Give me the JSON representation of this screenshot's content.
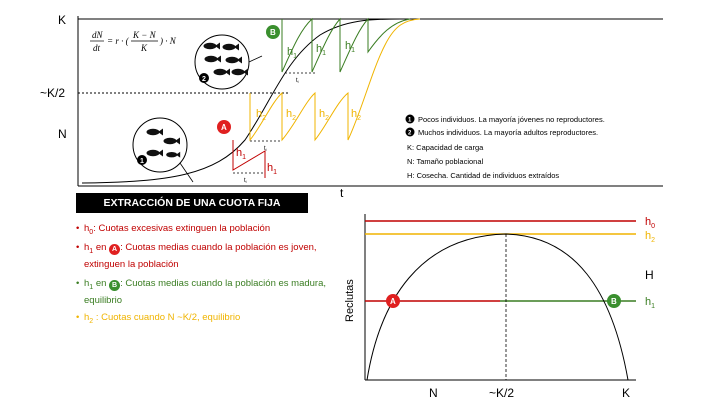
{
  "top_chart": {
    "equation": "dN/dt = r · ((K − N)/K) · N",
    "axis_labels": {
      "k": "K",
      "k_half": "~K/2",
      "n": "N",
      "t": "t"
    },
    "markers": {
      "a": "A",
      "b": "B",
      "one": "1",
      "two": "2"
    },
    "harvest_labels": {
      "h1": "h",
      "h1_sub": "1",
      "h2": "h",
      "h2_sub": "2",
      "ti": "t",
      "ti_sub": "i"
    },
    "legend": {
      "item1": "Pocos individuos. La mayoría jóvenes no reproductores.",
      "item2": "Muchos individuos. La mayoría adultos reproductores.",
      "k": "K:  Capacidad de carga",
      "n": "N:  Tamaño poblacional",
      "h": "H:  Cosecha. Cantidad de individuos extraídos"
    }
  },
  "quota_section": {
    "title": "EXTRACCIÓN DE UNA CUOTA FIJA",
    "bullets": {
      "h0": {
        "h": "h",
        "sub": "0",
        "text": ": Cuotas excesivas extinguen la población",
        "color": "#c00000"
      },
      "h1a": {
        "h": "h",
        "sub": "1",
        "en": " en ",
        "badge": "A",
        "text": ": Cuotas medias cuando la población es joven, extinguen la población",
        "color": "#c00000"
      },
      "h1b": {
        "h": "h",
        "sub": "1",
        "en": " en ",
        "badge": "B",
        "text": ": Cuotas medias cuando la población es madura, equilibrio",
        "color": "#3a7d22"
      },
      "h2": {
        "h": "h",
        "sub": "2",
        "text": " : Cuotas cuando N ~K/2, equilibrio",
        "color": "#f0b400"
      }
    }
  },
  "bottom_chart": {
    "ylabel": "Reclutas",
    "x_ticks": {
      "n": "N",
      "k_half": "~K/2",
      "k": "K"
    },
    "right_label": "H",
    "lines": {
      "h0": "h",
      "h0_sub": "0",
      "h2": "h",
      "h2_sub": "2",
      "h1": "h",
      "h1_sub": "1"
    },
    "markers": {
      "a": "A",
      "b": "B"
    }
  },
  "colors": {
    "red": "#c00000",
    "green": "#3a7d22",
    "yellow": "#f0b400",
    "bubble_red": "#e02020",
    "bubble_green": "#3a8f2e"
  },
  "icons": [
    "fish-school-icon"
  ]
}
